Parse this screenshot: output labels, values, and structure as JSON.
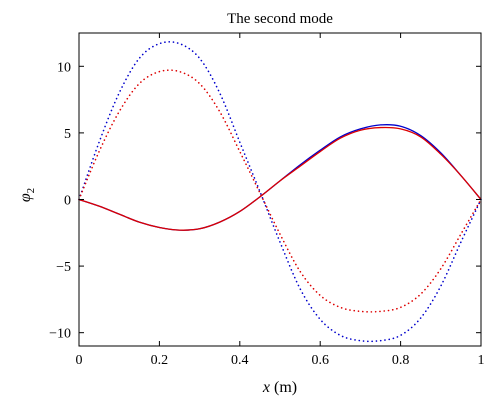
{
  "chart_data": {
    "type": "line",
    "title": "The second mode",
    "xlabel_var": "x",
    "xlabel_unit": " (m)",
    "ylabel_main": "φ",
    "ylabel_sub": "2",
    "xlim": [
      0,
      1
    ],
    "ylim": [
      -11,
      12.5
    ],
    "x_ticks": [
      0,
      0.2,
      0.4,
      0.6,
      0.8,
      1
    ],
    "x_tick_labels": [
      "0",
      "0.2",
      "0.4",
      "0.6",
      "0.8",
      "1"
    ],
    "y_ticks": [
      -10,
      -5,
      0,
      5,
      10
    ],
    "y_tick_labels": [
      "−10",
      "−5",
      "0",
      "5",
      "10"
    ],
    "grid": false,
    "x": [
      0,
      0.05,
      0.1,
      0.15,
      0.2,
      0.25,
      0.3,
      0.35,
      0.4,
      0.45,
      0.5,
      0.55,
      0.6,
      0.65,
      0.7,
      0.75,
      0.8,
      0.85,
      0.9,
      0.95,
      1
    ],
    "series": [
      {
        "color": "#0000cc",
        "style": "solid",
        "values": [
          0,
          -0.5,
          -1.1,
          -1.7,
          -2.1,
          -2.3,
          -2.2,
          -1.7,
          -0.9,
          0.2,
          1.4,
          2.6,
          3.7,
          4.7,
          5.3,
          5.6,
          5.5,
          4.8,
          3.5,
          1.8,
          0
        ]
      },
      {
        "color": "#dd0000",
        "style": "solid",
        "values": [
          0,
          -0.5,
          -1.1,
          -1.7,
          -2.1,
          -2.3,
          -2.2,
          -1.7,
          -0.9,
          0.2,
          1.4,
          2.5,
          3.6,
          4.6,
          5.2,
          5.4,
          5.3,
          4.7,
          3.4,
          1.8,
          0
        ]
      },
      {
        "color": "#0000cc",
        "style": "dotted",
        "values": [
          0,
          4.3,
          8.0,
          10.6,
          11.7,
          11.7,
          10.6,
          8.0,
          4.3,
          0.6,
          -3.2,
          -6.7,
          -9.0,
          -10.2,
          -10.6,
          -10.6,
          -10.2,
          -8.9,
          -6.5,
          -3.2,
          0
        ]
      },
      {
        "color": "#dd0000",
        "style": "dotted",
        "values": [
          0,
          3.6,
          6.6,
          8.7,
          9.6,
          9.6,
          8.7,
          6.6,
          3.6,
          0.5,
          -2.6,
          -5.4,
          -7.2,
          -8.1,
          -8.4,
          -8.4,
          -8.1,
          -7.1,
          -5.2,
          -2.6,
          0
        ]
      }
    ]
  }
}
